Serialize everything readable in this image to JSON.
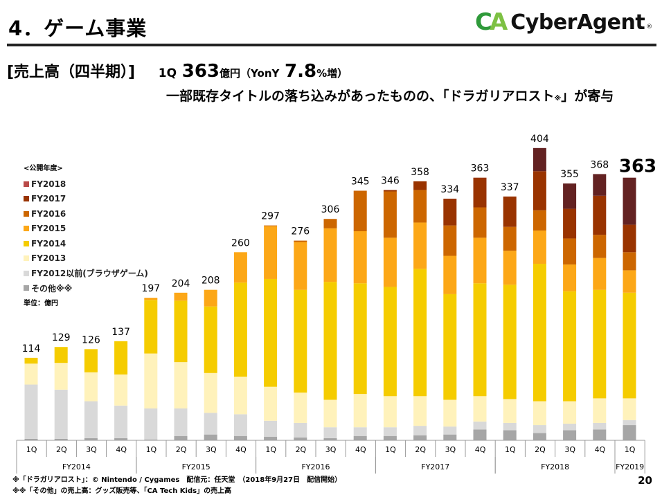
{
  "header": {
    "title": "4．ゲーム事業",
    "logo_mark_c": "C",
    "logo_mark_a": "A",
    "logo_text": "CyberAgent",
    "logo_reg": "®"
  },
  "headline": {
    "label": "[売上高（四半期）]",
    "quarter": "1Q",
    "value": "363",
    "unit": "億円（YonY",
    "growth": "7.8",
    "growth_suffix": "%増）"
  },
  "subheadline": {
    "text_before": "一部既存タイトルの落ち込みがあったものの、「ドラガリアロスト",
    "mark": "※",
    "text_after": "」が寄与"
  },
  "legend": {
    "heading": "<公開年度>",
    "unit": "単位：億円"
  },
  "footnotes": [
    "※「ドラガリアロスト」：© Nintendo / Cygames　配信元：任天堂　（2018年9月27日　配信開始）",
    "※※「その他」の売上高：グッズ販売等、「CA Tech Kids」の売上高"
  ],
  "page_number": "20",
  "chart_data": {
    "type": "bar",
    "stacked": true,
    "title": "売上高（四半期）",
    "ylabel": "単位：億円",
    "ylim": [
      0,
      420
    ],
    "grid": false,
    "legend_position": "left",
    "categories": [
      "1Q",
      "2Q",
      "3Q",
      "4Q",
      "1Q",
      "2Q",
      "3Q",
      "4Q",
      "1Q",
      "2Q",
      "3Q",
      "4Q",
      "1Q",
      "2Q",
      "3Q",
      "4Q",
      "1Q",
      "2Q",
      "3Q",
      "4Q",
      "1Q"
    ],
    "fiscal_years": [
      {
        "label": "FY2014",
        "count": 4
      },
      {
        "label": "FY2015",
        "count": 4
      },
      {
        "label": "FY2016",
        "count": 4
      },
      {
        "label": "FY2017",
        "count": 4
      },
      {
        "label": "FY2018",
        "count": 4
      },
      {
        "label": "FY2019",
        "count": 1
      }
    ],
    "totals": [
      114,
      129,
      126,
      137,
      197,
      204,
      208,
      260,
      297,
      276,
      306,
      345,
      346,
      358,
      334,
      363,
      337,
      404,
      355,
      368,
      363
    ],
    "highlight_last_total": true,
    "series": [
      {
        "name": "その他※※",
        "color": "#a6a6a6",
        "values": [
          2,
          2,
          3,
          3,
          1,
          6,
          8,
          6,
          5,
          4,
          3,
          6,
          6,
          7,
          8,
          15,
          14,
          10,
          14,
          15,
          21
        ]
      },
      {
        "name": "FY2012以前(ブラウザゲーム)",
        "color": "#d9d9d9",
        "values": [
          75,
          68,
          51,
          45,
          43,
          38,
          30,
          30,
          22,
          20,
          15,
          12,
          12,
          13,
          11,
          11,
          10,
          11,
          9,
          9,
          7
        ]
      },
      {
        "name": "FY2013",
        "color": "#fff2bb",
        "values": [
          29,
          37,
          40,
          43,
          76,
          64,
          55,
          52,
          47,
          42,
          38,
          46,
          43,
          41,
          37,
          35,
          33,
          33,
          31,
          34,
          30
        ]
      },
      {
        "name": "FY2014",
        "color": "#f5cc00",
        "values": [
          8,
          22,
          32,
          46,
          74,
          85,
          92,
          130,
          149,
          142,
          163,
          153,
          151,
          176,
          146,
          156,
          158,
          190,
          152,
          150,
          146
        ]
      },
      {
        "name": "FY2015",
        "color": "#fca717",
        "values": [
          0,
          0,
          0,
          0,
          3,
          11,
          23,
          42,
          73,
          66,
          74,
          72,
          68,
          64,
          53,
          63,
          47,
          46,
          37,
          44,
          31
        ]
      },
      {
        "name": "FY2016",
        "color": "#cc6600",
        "values": [
          0,
          0,
          0,
          0,
          0,
          0,
          0,
          0,
          1,
          2,
          13,
          56,
          64,
          45,
          42,
          42,
          33,
          28,
          36,
          32,
          25
        ]
      },
      {
        "name": "FY2017",
        "color": "#993300",
        "values": [
          0,
          0,
          0,
          0,
          0,
          0,
          0,
          0,
          0,
          0,
          0,
          0,
          2,
          12,
          37,
          41,
          42,
          54,
          41,
          54,
          38
        ]
      },
      {
        "name": "FY2018",
        "color": "#632222",
        "values": [
          0,
          0,
          0,
          0,
          0,
          0,
          0,
          0,
          0,
          0,
          0,
          0,
          0,
          0,
          0,
          0,
          0,
          32,
          35,
          30,
          65
        ]
      }
    ],
    "legend_order": [
      "FY2018",
      "FY2017",
      "FY2016",
      "FY2015",
      "FY2014",
      "FY2013",
      "FY2012以前(ブラウザゲーム)",
      "その他※※"
    ],
    "legend_swatch_colors": {
      "FY2018": "#b94a48"
    }
  }
}
